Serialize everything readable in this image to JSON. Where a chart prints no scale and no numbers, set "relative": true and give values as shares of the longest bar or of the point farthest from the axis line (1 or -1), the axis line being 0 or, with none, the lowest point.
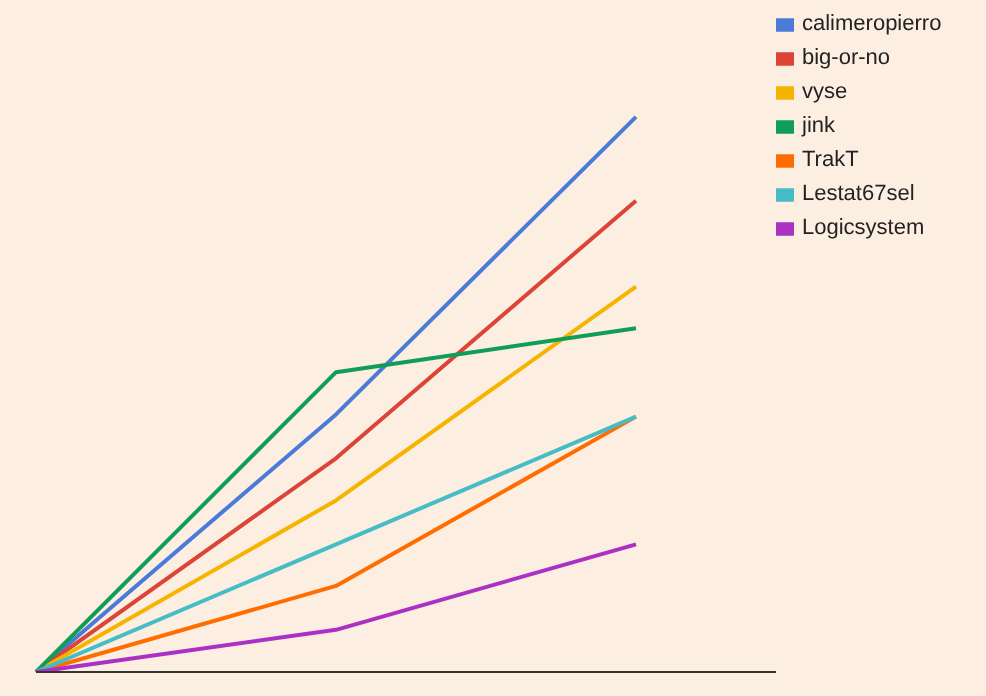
{
  "chart_data": {
    "type": "line",
    "relative": true,
    "categories": [
      null,
      null,
      null
    ],
    "grid": false,
    "legend": "top right",
    "marker": "none",
    "line_style": "solid",
    "series": [
      {
        "name": "calimeropierro",
        "color": "#4a7bd9",
        "values": [
          0,
          0.464,
          1
        ]
      },
      {
        "name": "big-or-no",
        "color": "#db4437",
        "values": [
          0,
          0.385,
          0.849
        ]
      },
      {
        "name": "vyse",
        "color": "#f4b400",
        "values": [
          0,
          0.309,
          0.694
        ]
      },
      {
        "name": "jink",
        "color": "#0f9d58",
        "values": [
          0,
          0.54,
          0.619
        ]
      },
      {
        "name": "TrakT",
        "color": "#ff6d01",
        "values": [
          0,
          0.155,
          0.46
        ]
      },
      {
        "name": "Lestat67sel",
        "color": "#46bdc6",
        "values": [
          0,
          0.23,
          0.46
        ]
      },
      {
        "name": "Logicsystem",
        "color": "#ab30c4",
        "values": [
          0,
          0.076,
          0.23
        ]
      }
    ]
  }
}
